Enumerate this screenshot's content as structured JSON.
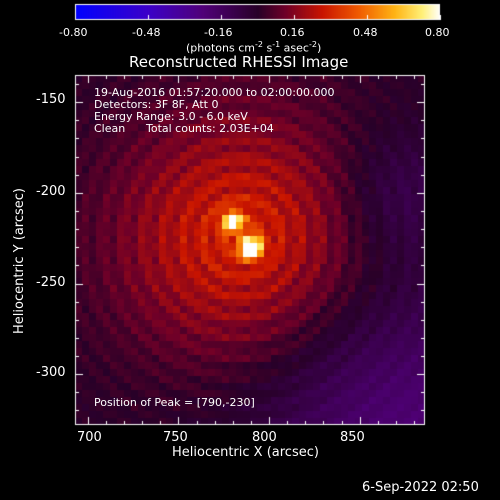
{
  "colorbar": {
    "ticks": [
      "-0.80",
      "-0.48",
      "-0.16",
      "0.16",
      "0.48",
      "0.80"
    ],
    "unit_prefix": "(photons cm",
    "unit_exp1": "-2",
    "unit_mid": " s",
    "unit_exp2": "-1",
    "unit_mid2": " asec",
    "unit_exp3": "-2",
    "unit_suffix": ")",
    "range": [
      -0.8,
      0.8
    ],
    "colormap": "black-purple-red-orange-yellow-white (negatives: blue-purple)"
  },
  "info": {
    "time_range": "19-Aug-2016 01:57:20.000 to 02:00:00.000",
    "detectors": "Detectors: 3F 8F, Att 0",
    "energy": "Energy Range: 3.0 - 6.0 keV",
    "method": "Clean",
    "counts": "Total counts: 2.03E+04",
    "peak": "Position of Peak = [790,-230]"
  },
  "footer": {
    "date": "6-Sep-2022 02:50"
  },
  "chart_data": {
    "type": "heatmap",
    "title": "Reconstructed RHESSI Image",
    "xlabel": "Heliocentric X (arcsec)",
    "ylabel": "Heliocentric Y (arcsec)",
    "xlim": [
      693,
      886
    ],
    "ylim": [
      -328,
      -135
    ],
    "x_ticks": [
      700,
      750,
      800,
      850
    ],
    "y_ticks": [
      -150,
      -200,
      -250,
      -300
    ],
    "peak": [
      790,
      -230
    ],
    "sources": [
      {
        "x": 790,
        "y": -230,
        "value": 0.8
      },
      {
        "x": 780,
        "y": -216,
        "value": 0.55
      }
    ],
    "background": {
      "center": [
        785,
        -225
      ],
      "ring_period_arcsec": 11
    },
    "colors": {
      "axis": "#ffffff",
      "background": "#000000",
      "frame_text": "#ffffff"
    }
  }
}
